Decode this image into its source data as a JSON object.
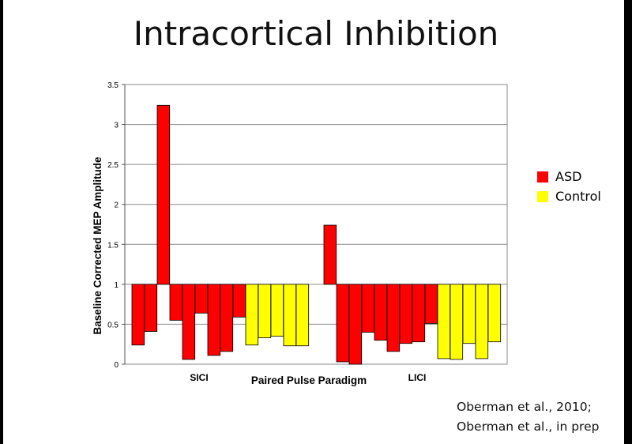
{
  "slide": {
    "title": "Intracortical Inhibition",
    "citation_lines": [
      "Oberman et al., 2010;",
      "Oberman et al., in prep"
    ]
  },
  "chart_data": {
    "type": "bar",
    "baseline": 1,
    "ylabel": "Baseline Corrected MEP Amplitude",
    "xlabel": "Paired Pulse Paradigm",
    "ylim": [
      0,
      3.5
    ],
    "yticks": [
      "0",
      "0.5",
      "1",
      "1.5",
      "2",
      "2.5",
      "3",
      "3.5"
    ],
    "grid": true,
    "legend_position": "right",
    "groups": [
      {
        "label": "SICI",
        "series": [
          {
            "name": "ASD",
            "color": "#ff0000",
            "values": [
              0.24,
              0.41,
              3.24,
              0.55,
              0.06,
              0.64,
              0.11,
              0.16,
              0.59
            ]
          },
          {
            "name": "Control",
            "color": "#ffff00",
            "values": [
              0.24,
              0.33,
              0.35,
              0.23,
              0.23
            ]
          }
        ]
      },
      {
        "label": "LICI",
        "series": [
          {
            "name": "ASD",
            "color": "#ff0000",
            "values": [
              1.74,
              0.03,
              0.0,
              0.4,
              0.3,
              0.16,
              0.26,
              0.28,
              0.51
            ]
          },
          {
            "name": "Control",
            "color": "#ffff00",
            "values": [
              0.07,
              0.06,
              0.26,
              0.07,
              0.28
            ]
          }
        ]
      }
    ],
    "legend": [
      {
        "name": "ASD",
        "color": "#ff0000"
      },
      {
        "name": "Control",
        "color": "#ffff00"
      }
    ]
  }
}
